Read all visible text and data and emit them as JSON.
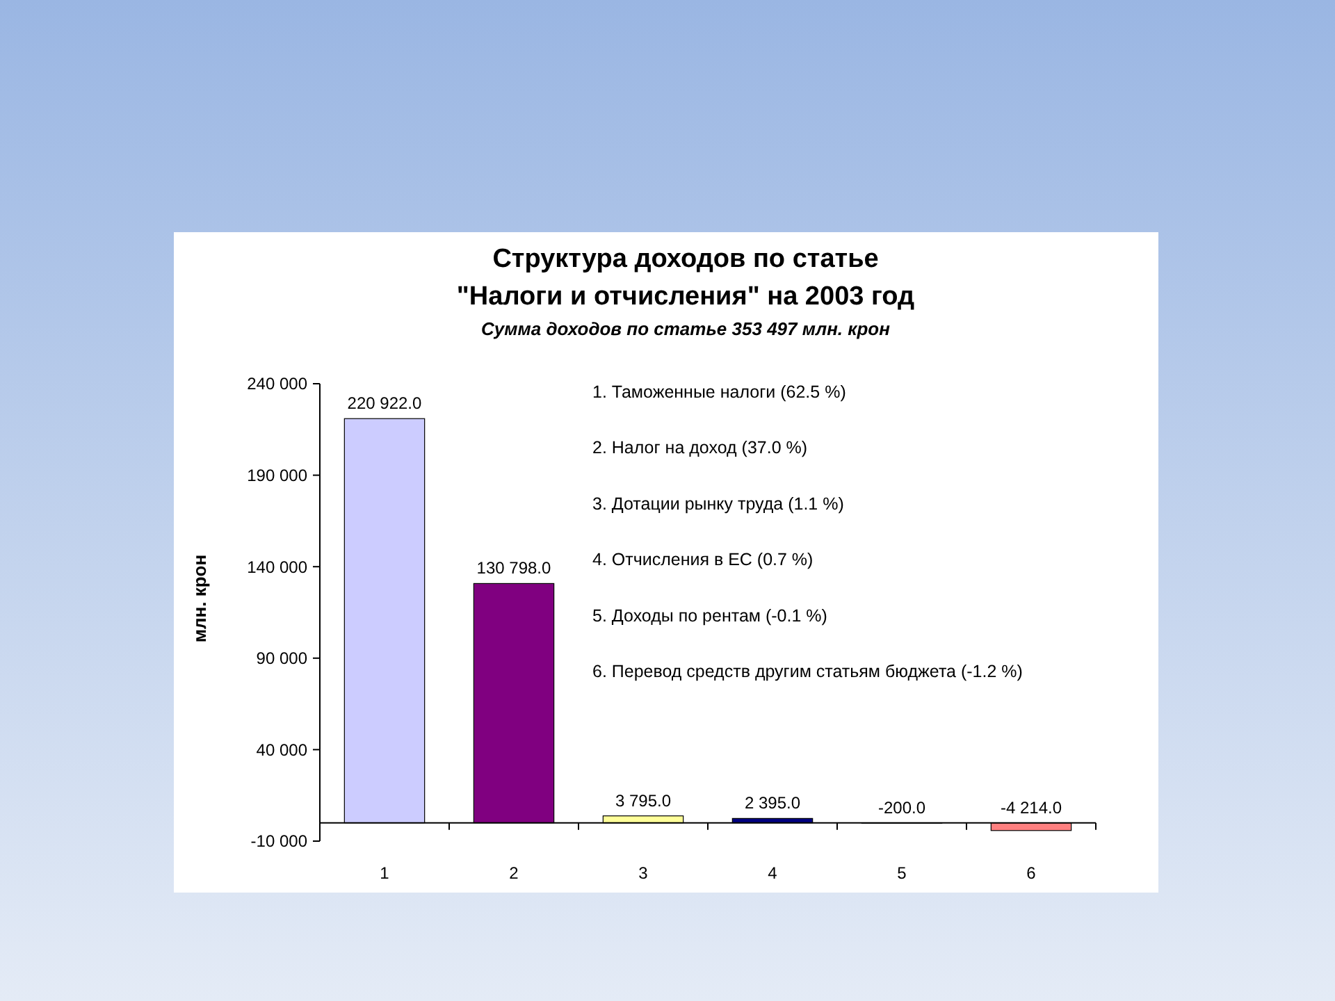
{
  "chart_data": {
    "type": "bar",
    "title": "Структура доходов по статье\n\"Налоги и отчисления\" на 2003 год",
    "subtitle": "Сумма доходов по статье 353 497  млн. крон",
    "ylabel": "млн. крон",
    "categories": [
      "1",
      "2",
      "3",
      "4",
      "5",
      "6"
    ],
    "values": [
      220922,
      130798,
      3795,
      2395,
      -200,
      -4214
    ],
    "colors": [
      "#ccccff",
      "#800080",
      "#ffff99",
      "#000080",
      "#008080",
      "#ff8080"
    ],
    "value_labels": [
      "220 922.0",
      "130 798.0",
      "3 795.0",
      "2 395.0",
      "-200.0",
      "-4 214.0"
    ],
    "ylim": [
      -10000,
      240000
    ],
    "yticks": [
      {
        "value": -10000,
        "label": "-10 000"
      },
      {
        "value": 40000,
        "label": "40 000"
      },
      {
        "value": 90000,
        "label": "90 000"
      },
      {
        "value": 140000,
        "label": "140 000"
      },
      {
        "value": 190000,
        "label": "190 000"
      },
      {
        "value": 240000,
        "label": "240 000"
      }
    ],
    "annotations": [
      "1. Таможенные налоги (62.5 %)",
      "2. Налог на доход (37.0 %)",
      "3. Дотации рынку труда (1.1 %)",
      "4. Отчисления в ЕС (0.7 %)",
      "5. Доходы по рентам (-0.1 %)",
      "6. Перевод средств другим статьям бюджета (-1.2 %)"
    ],
    "grid": false
  }
}
